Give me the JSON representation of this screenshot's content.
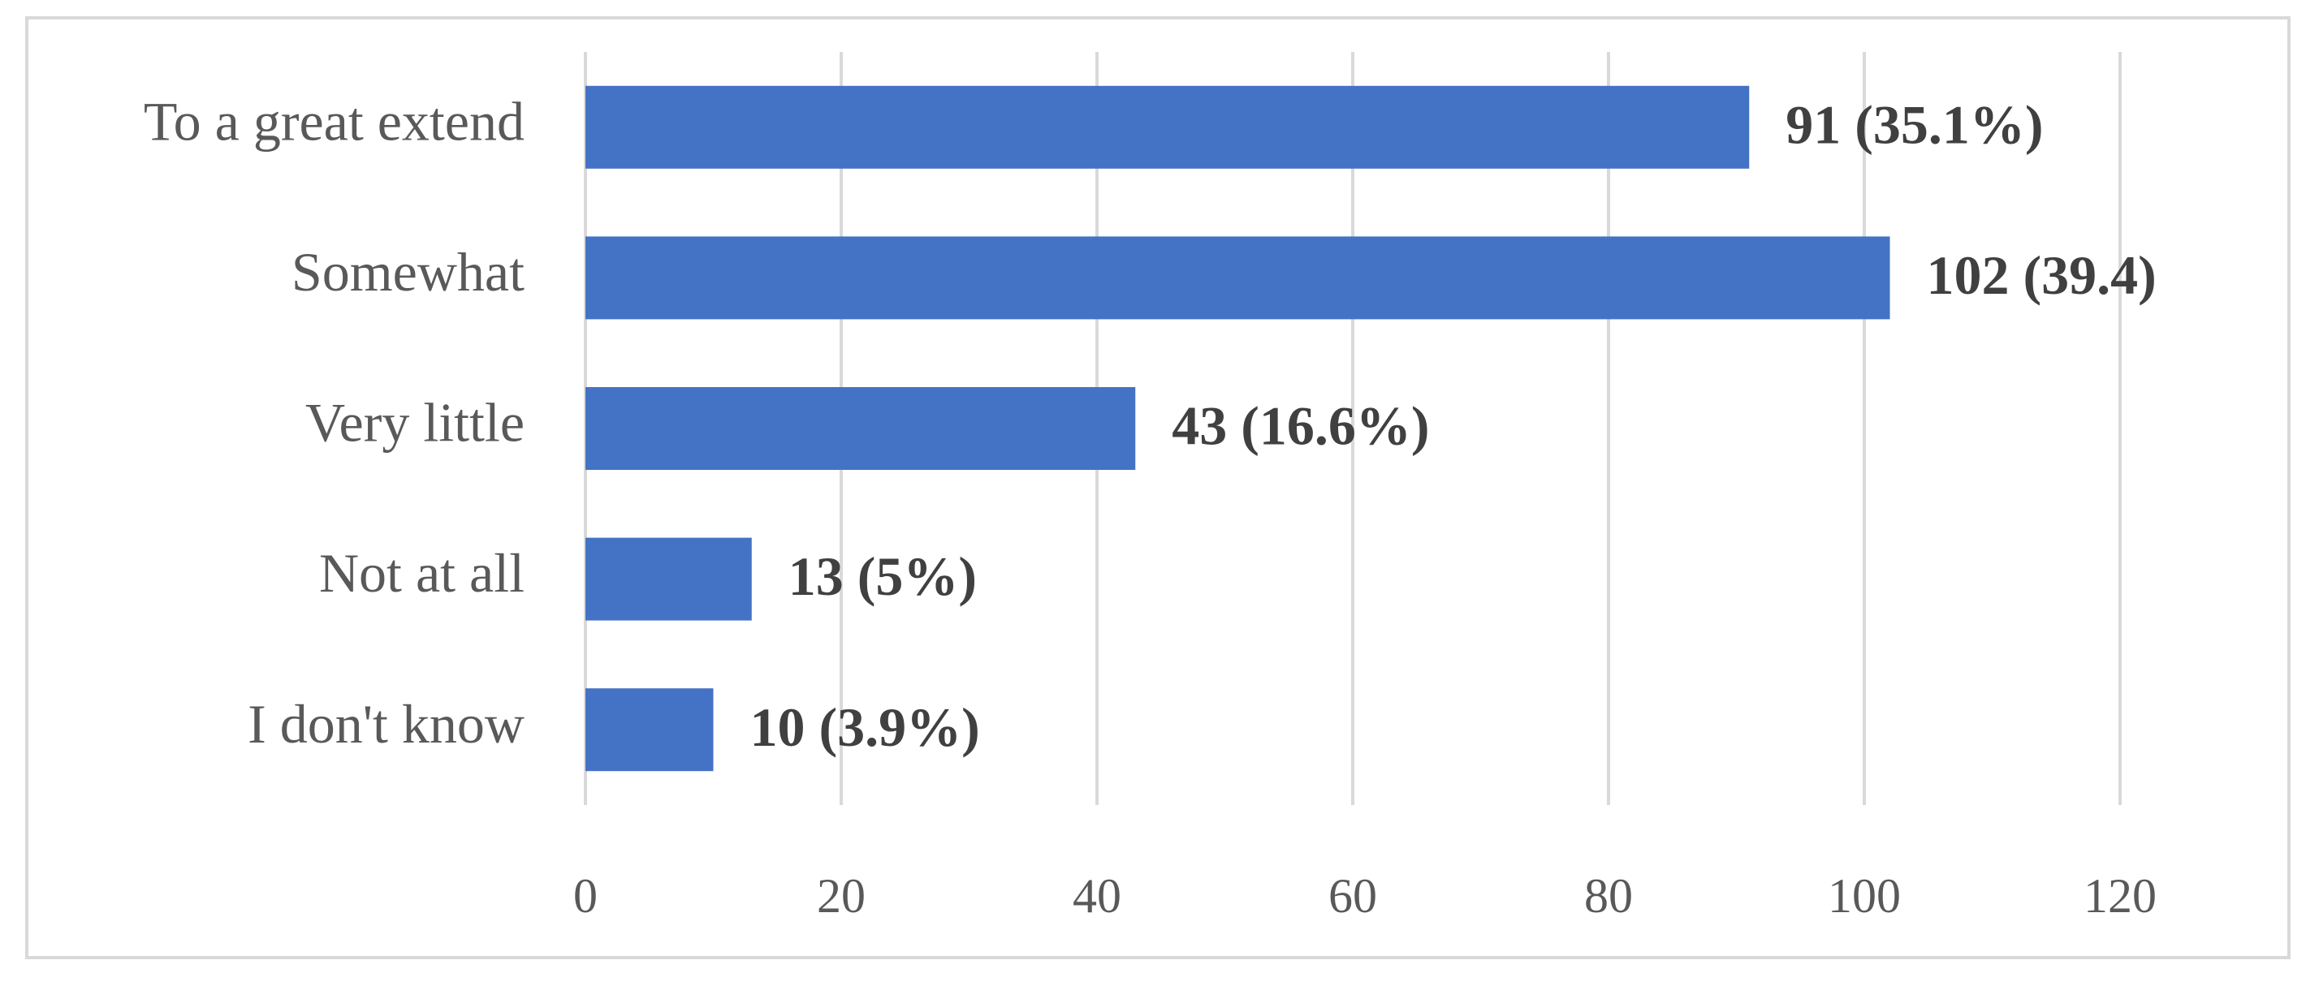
{
  "chart_data": {
    "type": "bar",
    "orientation": "horizontal",
    "categories": [
      "To a great extend",
      "Somewhat",
      "Very little",
      "Not at all",
      "I don't know"
    ],
    "values": [
      91,
      102,
      43,
      13,
      10
    ],
    "value_labels": [
      "91 (35.1%)",
      "102 (39.4)",
      "43 (16.6%)",
      "13 (5%)",
      "10 (3.9%)"
    ],
    "color": "#4472c4",
    "xlim": [
      0,
      120
    ],
    "xticks": [
      0,
      20,
      40,
      60,
      80,
      100,
      120
    ],
    "grid": true
  }
}
